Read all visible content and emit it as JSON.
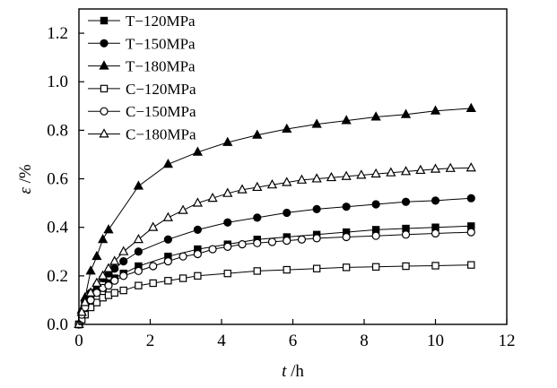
{
  "chart_data": {
    "type": "line",
    "xlabel": "t /h",
    "xlabel_var": "t",
    "xlabel_unit": " /h",
    "ylabel": "ε /%",
    "ylabel_var": "ε",
    "ylabel_unit": " /%",
    "xlim": [
      0,
      12
    ],
    "ylim": [
      0,
      1.3
    ],
    "xticks": [
      0,
      2,
      4,
      6,
      8,
      10,
      12
    ],
    "yticks": [
      0.0,
      0.2,
      0.4,
      0.6,
      0.8,
      1.0,
      1.2
    ],
    "xtick_labels": [
      "0",
      "2",
      "4",
      "6",
      "8",
      "10",
      "12"
    ],
    "ytick_labels": [
      "0.0",
      "0.2",
      "0.4",
      "0.6",
      "0.8",
      "1.0",
      "1.2"
    ],
    "grid": false,
    "legend_position": "top-left",
    "series": [
      {
        "name": "T−120MPa",
        "marker": "square",
        "filled": true,
        "x": [
          0,
          0.08,
          0.17,
          0.33,
          0.5,
          0.67,
          0.83,
          1.0,
          1.25,
          1.67,
          2.5,
          3.33,
          4.17,
          5.0,
          5.83,
          6.67,
          7.5,
          8.33,
          9.17,
          10.0,
          11.0
        ],
        "y": [
          0,
          0.04,
          0.07,
          0.1,
          0.13,
          0.15,
          0.17,
          0.19,
          0.21,
          0.24,
          0.28,
          0.31,
          0.33,
          0.35,
          0.36,
          0.37,
          0.38,
          0.39,
          0.395,
          0.4,
          0.405
        ]
      },
      {
        "name": "T−150MPa",
        "marker": "circle",
        "filled": true,
        "x": [
          0,
          0.08,
          0.17,
          0.33,
          0.5,
          0.67,
          0.83,
          1.0,
          1.25,
          1.67,
          2.5,
          3.33,
          4.17,
          5.0,
          5.83,
          6.67,
          7.5,
          8.33,
          9.17,
          10.0,
          11.0
        ],
        "y": [
          0,
          0.05,
          0.09,
          0.13,
          0.16,
          0.19,
          0.21,
          0.23,
          0.26,
          0.3,
          0.35,
          0.39,
          0.42,
          0.44,
          0.46,
          0.475,
          0.485,
          0.495,
          0.505,
          0.51,
          0.52
        ]
      },
      {
        "name": "T−180MPa",
        "marker": "triangle",
        "filled": true,
        "x": [
          0,
          0.08,
          0.17,
          0.33,
          0.5,
          0.67,
          0.83,
          1.67,
          2.5,
          3.33,
          4.17,
          5.0,
          5.83,
          6.67,
          7.5,
          8.33,
          9.17,
          10.0,
          11.0
        ],
        "y": [
          0,
          0.06,
          0.11,
          0.22,
          0.28,
          0.35,
          0.39,
          0.57,
          0.66,
          0.71,
          0.75,
          0.78,
          0.805,
          0.825,
          0.84,
          0.855,
          0.865,
          0.88,
          0.89
        ]
      },
      {
        "name": "C−120MPa",
        "marker": "square",
        "filled": false,
        "x": [
          0,
          0.08,
          0.17,
          0.33,
          0.5,
          0.67,
          0.83,
          1.0,
          1.25,
          1.67,
          2.08,
          2.5,
          2.92,
          3.33,
          4.17,
          5.0,
          5.83,
          6.67,
          7.5,
          8.33,
          9.17,
          10.0,
          11.0
        ],
        "y": [
          0,
          0.02,
          0.04,
          0.07,
          0.09,
          0.11,
          0.12,
          0.13,
          0.14,
          0.16,
          0.17,
          0.18,
          0.19,
          0.2,
          0.21,
          0.22,
          0.225,
          0.23,
          0.235,
          0.237,
          0.24,
          0.242,
          0.245
        ]
      },
      {
        "name": "C−150MPa",
        "marker": "circle",
        "filled": false,
        "x": [
          0,
          0.08,
          0.17,
          0.33,
          0.5,
          0.67,
          0.83,
          1.0,
          1.25,
          1.67,
          2.08,
          2.5,
          2.92,
          3.33,
          3.75,
          4.17,
          4.58,
          5.0,
          5.42,
          5.83,
          6.25,
          6.67,
          7.5,
          8.33,
          9.17,
          10.0,
          11.0
        ],
        "y": [
          0,
          0.04,
          0.07,
          0.1,
          0.13,
          0.15,
          0.16,
          0.18,
          0.2,
          0.22,
          0.24,
          0.26,
          0.28,
          0.29,
          0.31,
          0.32,
          0.33,
          0.335,
          0.34,
          0.345,
          0.35,
          0.355,
          0.36,
          0.365,
          0.37,
          0.375,
          0.38
        ]
      },
      {
        "name": "C−180MPa",
        "marker": "triangle",
        "filled": false,
        "x": [
          0,
          0.08,
          0.17,
          0.33,
          0.5,
          0.67,
          0.83,
          1.0,
          1.25,
          1.67,
          2.08,
          2.5,
          2.92,
          3.33,
          3.75,
          4.17,
          4.58,
          5.0,
          5.42,
          5.83,
          6.25,
          6.67,
          7.08,
          7.5,
          7.92,
          8.33,
          8.75,
          9.17,
          9.58,
          10.0,
          10.42,
          11.0
        ],
        "y": [
          0,
          0.05,
          0.09,
          0.13,
          0.17,
          0.2,
          0.23,
          0.26,
          0.3,
          0.35,
          0.4,
          0.44,
          0.47,
          0.5,
          0.52,
          0.54,
          0.555,
          0.565,
          0.575,
          0.585,
          0.595,
          0.6,
          0.605,
          0.61,
          0.615,
          0.62,
          0.625,
          0.63,
          0.635,
          0.64,
          0.643,
          0.645
        ]
      }
    ]
  }
}
